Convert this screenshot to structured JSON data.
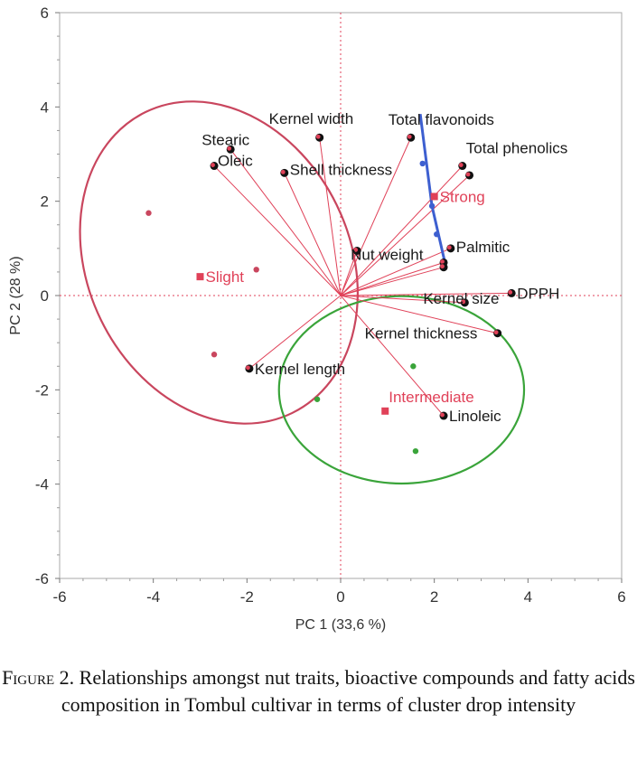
{
  "chart_data": {
    "type": "scatter",
    "subtype": "biplot",
    "xlabel": "PC 1  (33,6 %)",
    "ylabel": "PC 2  (28 %)",
    "xlim": [
      -6,
      6
    ],
    "ylim": [
      -6,
      6
    ],
    "xticks": [
      "-6",
      "-4",
      "-2",
      "0",
      "2",
      "4",
      "6"
    ],
    "yticks": [
      "6",
      "4",
      "2",
      "0",
      "-2",
      "-4",
      "-6"
    ],
    "grid": false,
    "reference_lines": [
      {
        "axis": "x",
        "value": 0
      },
      {
        "axis": "y",
        "value": 0
      }
    ],
    "colors": {
      "vector": "#e04158",
      "group": "#e04158",
      "slight_ellipse": "#c9465e",
      "intermediate_ellipse": "#3aa43a",
      "intermediate_points": "#3aa43a",
      "slight_points": "#c9465e",
      "strong_line": "#3d5fd0",
      "variable_point": "#111111"
    },
    "variables": [
      {
        "name": "Kernel width",
        "x": -0.45,
        "y": 3.35
      },
      {
        "name": "Stearic",
        "x": -2.35,
        "y": 3.1
      },
      {
        "name": "Oleic",
        "x": -2.7,
        "y": 2.75
      },
      {
        "name": "Shell thickness",
        "x": -1.2,
        "y": 2.6
      },
      {
        "name": "Total flavonoids",
        "x": 1.5,
        "y": 3.35
      },
      {
        "name": "Total phenolics",
        "x": 2.6,
        "y": 2.75
      },
      {
        "name": "",
        "x": 2.75,
        "y": 2.55
      },
      {
        "name": "Palmitic",
        "x": 2.35,
        "y": 1.0
      },
      {
        "name": "Nut weight",
        "x": 0.35,
        "y": 0.95
      },
      {
        "name": "",
        "x": 2.2,
        "y": 0.7
      },
      {
        "name": "",
        "x": 2.2,
        "y": 0.6
      },
      {
        "name": "Kernel size",
        "x": 2.65,
        "y": -0.15
      },
      {
        "name": "DPPH",
        "x": 3.65,
        "y": 0.05
      },
      {
        "name": "Kernel thickness",
        "x": 3.35,
        "y": -0.8
      },
      {
        "name": "Kernel length",
        "x": -1.95,
        "y": -1.55
      },
      {
        "name": "Linoleic",
        "x": 2.2,
        "y": -2.55
      }
    ],
    "groups": [
      {
        "name": "Slight",
        "x": -3.0,
        "y": 0.4
      },
      {
        "name": "Strong",
        "x": 2.0,
        "y": 2.1
      },
      {
        "name": "Intermediate",
        "x": 0.95,
        "y": -2.45
      }
    ],
    "observations": [
      {
        "group": "Slight",
        "x": -4.1,
        "y": 1.75
      },
      {
        "group": "Slight",
        "x": -1.8,
        "y": 0.55
      },
      {
        "group": "Slight",
        "x": -2.7,
        "y": -1.25
      },
      {
        "group": "Intermediate",
        "x": 1.55,
        "y": -1.5
      },
      {
        "group": "Intermediate",
        "x": -0.5,
        "y": -2.2
      },
      {
        "group": "Intermediate",
        "x": 1.6,
        "y": -3.3
      },
      {
        "group": "Strong",
        "x": 1.75,
        "y": 2.8
      },
      {
        "group": "Strong",
        "x": 1.95,
        "y": 1.9
      },
      {
        "group": "Strong",
        "x": 2.05,
        "y": 1.3
      }
    ],
    "strong_line": [
      [
        1.7,
        3.85
      ],
      [
        1.95,
        1.9
      ],
      [
        2.25,
        0.6
      ]
    ],
    "ellipses": [
      {
        "group": "Slight",
        "cx": -2.6,
        "cy": 0.7,
        "rx": 2.8,
        "ry": 3.55,
        "angle": -26
      },
      {
        "group": "Intermediate",
        "cx": 1.3,
        "cy": -2.0,
        "rx": 2.0,
        "ry": 2.6,
        "angle": 90
      }
    ]
  },
  "caption": {
    "lead": "Figure 2.",
    "text": " Relationships amongst nut traits, bioactive compounds and fatty acids composition in Tombul cultivar in terms of cluster drop intensity"
  }
}
